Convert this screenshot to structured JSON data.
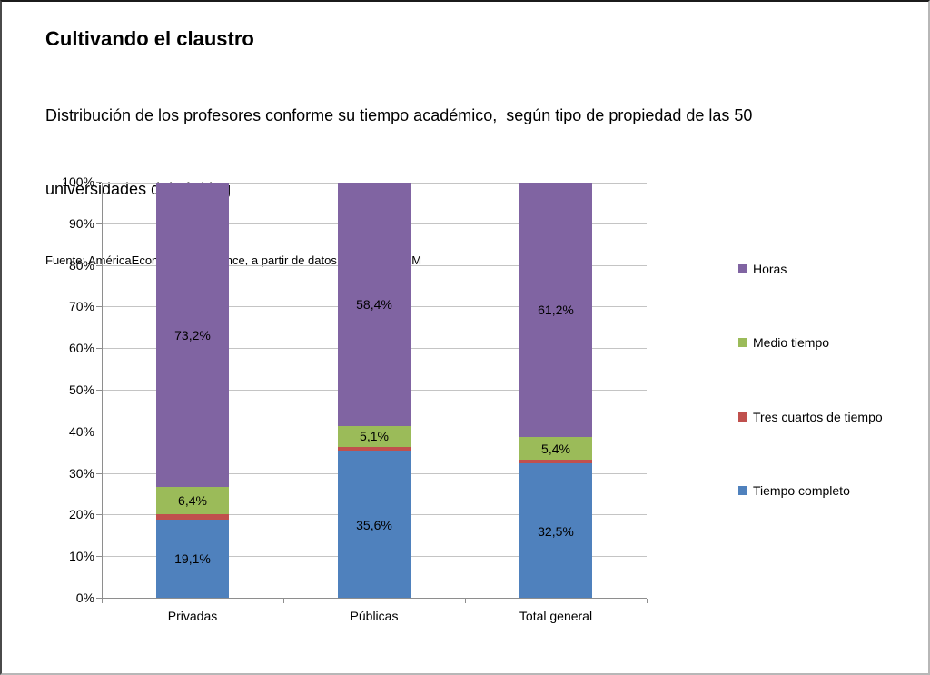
{
  "header": {
    "title": "Cultivando el claustro",
    "subtitle_lines": [
      "Distribución de los profesores conforme su tiempo académico,  según tipo de propiedad de las 50",
      "universidades del ránking"
    ],
    "source": "Fuente: AméricaEconomía Inteligence, a partir de datos Execum-UNAM"
  },
  "chart_data": {
    "type": "bar",
    "stacked": true,
    "percent_stacked": true,
    "title": "Cultivando el claustro",
    "subtitle": "Distribución de los profesores conforme su tiempo académico,  según tipo de propiedad de las 50 universidades del ránking",
    "source": "Fuente: AméricaEconomía Inteligence, a partir de datos Execum-UNAM",
    "categories": [
      "Privadas",
      "Públicas",
      "Total general"
    ],
    "series": [
      {
        "name": "Tiempo completo",
        "color": "#4F81BD",
        "values": [
          19.1,
          35.6,
          32.5
        ],
        "labels": [
          "19,1%",
          "35,6%",
          "32,5%"
        ]
      },
      {
        "name": "Tres cuartos de tiempo",
        "color": "#C0504D",
        "values": [
          1.3,
          0.9,
          0.9
        ],
        "labels": [
          "",
          "",
          ""
        ]
      },
      {
        "name": "Medio tiempo",
        "color": "#9BBB59",
        "values": [
          6.4,
          5.1,
          5.4
        ],
        "labels": [
          "6,4%",
          "5,1%",
          "5,4%"
        ]
      },
      {
        "name": "Horas",
        "color": "#8064A2",
        "values": [
          73.2,
          58.4,
          61.2
        ],
        "labels": [
          "73,2%",
          "58,4%",
          "61,2%"
        ]
      }
    ],
    "legend_items": [
      {
        "label": "Horas",
        "color": "#8064A2"
      },
      {
        "label": "Medio tiempo",
        "color": "#9BBB59"
      },
      {
        "label": "Tres cuartos de tiempo",
        "color": "#C0504D"
      },
      {
        "label": "Tiempo completo",
        "color": "#4F81BD"
      }
    ],
    "legend_position": "right",
    "xlabel": "",
    "ylabel": "",
    "ylim": [
      0,
      100
    ],
    "yticks": [
      "0%",
      "10%",
      "20%",
      "30%",
      "40%",
      "50%",
      "60%",
      "70%",
      "80%",
      "90%",
      "100%"
    ],
    "grid": true,
    "colors": {
      "gridline": "#C4C4C4",
      "axis": "#8E8E8E",
      "text": "#000000",
      "background": "#FFFFFF"
    }
  }
}
